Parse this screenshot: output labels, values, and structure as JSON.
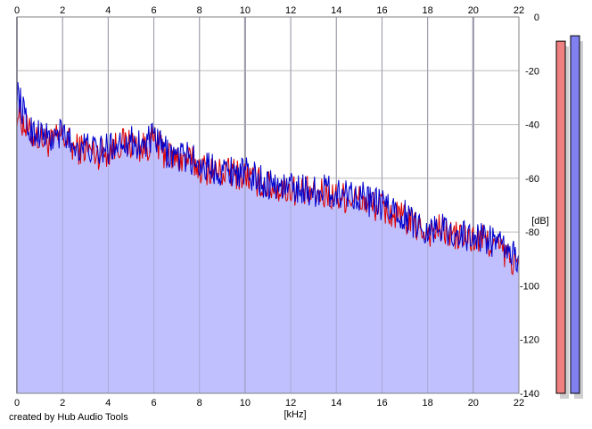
{
  "chart_data": {
    "type": "area",
    "xlabel": "[kHz]",
    "ylabel": "[dB]",
    "xlim": [
      0,
      22
    ],
    "ylim": [
      -140,
      0
    ],
    "x_ticks": [
      0,
      2,
      4,
      6,
      8,
      10,
      12,
      14,
      16,
      18,
      20,
      22
    ],
    "y_ticks": [
      0,
      -20,
      -40,
      -60,
      -80,
      -100,
      -120,
      -140
    ],
    "grid": true,
    "fill_color": "#c0c0ff",
    "series": [
      {
        "color": "#dd0000",
        "x": [
          0,
          0.5,
          1,
          1.5,
          2,
          2.5,
          3,
          3.5,
          4,
          4.5,
          5,
          5.5,
          6,
          6.5,
          7,
          7.5,
          8,
          8.5,
          9,
          9.5,
          10,
          10.5,
          11,
          11.5,
          12,
          12.5,
          13,
          13.5,
          14,
          14.5,
          15,
          15.5,
          16,
          16.5,
          17,
          17.5,
          18,
          18.5,
          19,
          19.5,
          20,
          20.5,
          21,
          21.5,
          22
        ],
        "values": [
          -35,
          -43,
          -45,
          -47,
          -44,
          -49,
          -49,
          -51,
          -50,
          -47,
          -47,
          -49,
          -46,
          -51,
          -53,
          -53,
          -56,
          -57,
          -58,
          -58,
          -59,
          -61,
          -63,
          -64,
          -64,
          -65,
          -66,
          -66,
          -67,
          -67,
          -68,
          -70,
          -71,
          -74,
          -75,
          -78,
          -80,
          -79,
          -81,
          -82,
          -83,
          -83,
          -85,
          -89,
          -93
        ]
      },
      {
        "color": "#0000cc",
        "x": [
          0,
          0.5,
          1,
          1.5,
          2,
          2.5,
          3,
          3.5,
          4,
          4.5,
          5,
          5.5,
          6,
          6.5,
          7,
          7.5,
          8,
          8.5,
          9,
          9.5,
          10,
          10.5,
          11,
          11.5,
          12,
          12.5,
          13,
          13.5,
          14,
          14.5,
          15,
          15.5,
          16,
          16.5,
          17,
          17.5,
          18,
          18.5,
          19,
          19.5,
          20,
          20.5,
          21,
          21.5,
          22
        ],
        "values": [
          -27,
          -42,
          -43,
          -46,
          -43,
          -48,
          -48,
          -50,
          -49,
          -46,
          -46,
          -48,
          -45,
          -50,
          -52,
          -52,
          -55,
          -56,
          -57,
          -57,
          -58,
          -60,
          -62,
          -63,
          -63,
          -64,
          -65,
          -64,
          -66,
          -65,
          -66,
          -69,
          -70,
          -72,
          -74,
          -77,
          -79,
          -78,
          -80,
          -81,
          -82,
          -82,
          -84,
          -87,
          -91
        ]
      }
    ]
  },
  "meters": [
    {
      "color": "#f08080",
      "level": -9
    },
    {
      "color": "#8080f0",
      "level": -7
    }
  ],
  "credit": "created by Hub Audio Tools"
}
